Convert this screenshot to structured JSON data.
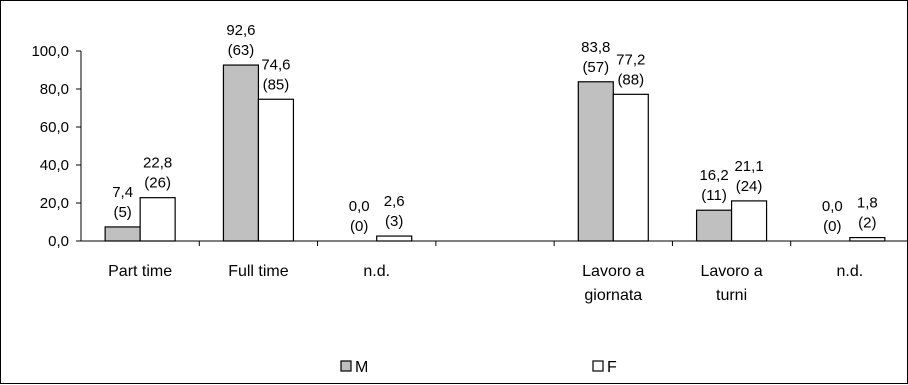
{
  "chart_data": {
    "type": "bar",
    "categories": [
      [
        "Part time"
      ],
      [
        "Full time"
      ],
      [
        "n.d."
      ],
      [
        ""
      ],
      [
        "Lavoro a",
        "giornata"
      ],
      [
        "Lavoro a",
        "turni"
      ],
      [
        "n.d."
      ]
    ],
    "series": [
      {
        "name": "M",
        "color": "#c0c0c0",
        "values": [
          7.4,
          92.6,
          0.0,
          null,
          83.8,
          16.2,
          0.0
        ],
        "value_labels": [
          "7,4",
          "92,6",
          "0,0",
          "",
          "83,8",
          "16,2",
          "0,0"
        ],
        "count_labels": [
          "(5)",
          "(63)",
          "(0)",
          "",
          "(57)",
          "(11)",
          "(0)"
        ]
      },
      {
        "name": "F",
        "color": "#ffffff",
        "values": [
          22.8,
          74.6,
          2.6,
          null,
          77.2,
          21.1,
          1.8
        ],
        "value_labels": [
          "22,8",
          "74,6",
          "2,6",
          "",
          "77,2",
          "21,1",
          "1,8"
        ],
        "count_labels": [
          "(26)",
          "(85)",
          "(3)",
          "",
          "(88)",
          "(24)",
          "(2)"
        ]
      }
    ],
    "y_ticks": [
      "0,0",
      "20,0",
      "40,0",
      "60,0",
      "80,0",
      "100,0"
    ],
    "ylim": [
      0,
      100
    ],
    "grid": false,
    "legend_position": "bottom"
  }
}
